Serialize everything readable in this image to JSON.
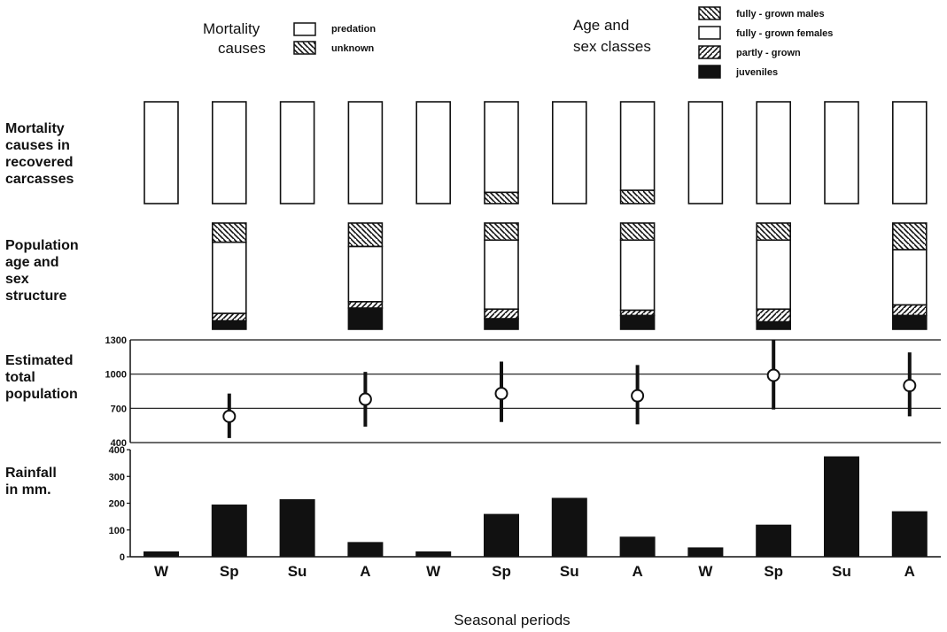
{
  "legend": {
    "mortality_title": [
      "Mortality",
      "causes"
    ],
    "mortality_items": [
      {
        "label": "predation",
        "pattern": "white"
      },
      {
        "label": "unknown",
        "pattern": "hatch"
      }
    ],
    "agesex_title": [
      "Age and",
      "sex classes"
    ],
    "agesex_items": [
      {
        "label": "fully - grown males",
        "pattern": "hatch"
      },
      {
        "label": "fully - grown females",
        "pattern": "white"
      },
      {
        "label": "partly - grown",
        "pattern": "hatch-rev"
      },
      {
        "label": "juveniles",
        "pattern": "black"
      }
    ]
  },
  "row_labels": {
    "mortality": [
      "Mortality",
      "causes in",
      "recovered",
      "carcasses"
    ],
    "population": [
      "Population",
      "age and",
      "sex",
      "structure"
    ],
    "estimate": [
      "Estimated",
      "total",
      "population"
    ],
    "rainfall": [
      "Rainfall",
      "in mm."
    ]
  },
  "x_axis_title": "Seasonal periods",
  "chart_data": {
    "type": "composite",
    "seasons": [
      "W",
      "Sp",
      "Su",
      "A",
      "W",
      "Sp",
      "Su",
      "A",
      "W",
      "Sp",
      "Su",
      "A"
    ],
    "mortality_causes": {
      "unknown_fraction": [
        0,
        0,
        0,
        0,
        0,
        0.11,
        0,
        0.13,
        0,
        0,
        0,
        0
      ]
    },
    "population_structure": {
      "season_index": [
        1,
        3,
        5,
        7,
        9,
        11
      ],
      "males": [
        0.18,
        0.22,
        0.16,
        0.16,
        0.16,
        0.25
      ],
      "females": [
        0.67,
        0.52,
        0.65,
        0.66,
        0.65,
        0.52
      ],
      "partly_grown": [
        0.07,
        0.06,
        0.09,
        0.05,
        0.12,
        0.1
      ],
      "juveniles": [
        0.08,
        0.2,
        0.1,
        0.13,
        0.07,
        0.13
      ]
    },
    "estimated_population": {
      "season_index": [
        1,
        3,
        5,
        7,
        9,
        11
      ],
      "mean": [
        630,
        780,
        830,
        810,
        990,
        900
      ],
      "low": [
        440,
        540,
        580,
        560,
        690,
        630
      ],
      "high": [
        830,
        1020,
        1110,
        1080,
        1300,
        1190
      ],
      "y_ticks": [
        400,
        700,
        1000,
        1300
      ],
      "ylim": [
        400,
        1300
      ]
    },
    "rainfall_mm": {
      "values": [
        20,
        195,
        215,
        55,
        20,
        160,
        220,
        75,
        35,
        120,
        375,
        170
      ],
      "y_ticks": [
        0,
        100,
        200,
        300,
        400
      ],
      "ylim": [
        0,
        400
      ]
    },
    "colors": {
      "ink": "#111111",
      "paper": "#ffffff"
    }
  }
}
